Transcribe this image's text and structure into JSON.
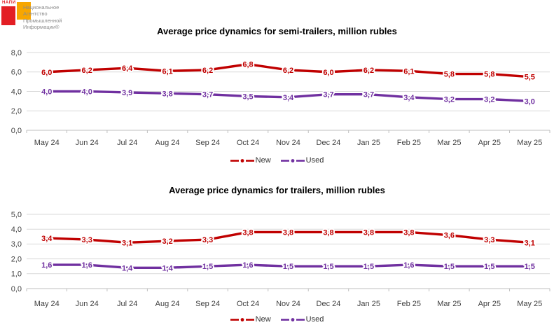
{
  "logo": {
    "brand": "НАПИ",
    "org_lines": [
      "Национальное",
      "Агентство",
      "Промышленной",
      "Информации®"
    ]
  },
  "colors": {
    "new_series": "#c00000",
    "used_series": "#7030a0",
    "gridline": "#d9d9d9",
    "axis_line": "#bfbfbf",
    "axis_text": "#404040"
  },
  "chart_data": [
    {
      "type": "line",
      "title": "Average price dynamics for semi-trailers, million rubles",
      "categories": [
        "May 24",
        "Jun 24",
        "Jul 24",
        "Aug 24",
        "Sep 24",
        "Oct 24",
        "Nov 24",
        "Dec 24",
        "Jan 25",
        "Feb 25",
        "Mar 25",
        "Apr 25",
        "May 25"
      ],
      "series": [
        {
          "name": "New",
          "color": "#c00000",
          "values": [
            6.0,
            6.2,
            6.4,
            6.1,
            6.2,
            6.8,
            6.2,
            6.0,
            6.2,
            6.1,
            5.8,
            5.8,
            5.5
          ]
        },
        {
          "name": "Used",
          "color": "#7030a0",
          "values": [
            4.0,
            4.0,
            3.9,
            3.8,
            3.7,
            3.5,
            3.4,
            3.7,
            3.7,
            3.4,
            3.2,
            3.2,
            3.0
          ]
        }
      ],
      "ylim": [
        0,
        8
      ],
      "ytick_step": 2,
      "ytick_labels": [
        "0,0",
        "2,0",
        "4,0",
        "6,0",
        "8,0"
      ],
      "grid": true,
      "legend_position": "bottom",
      "decimal_separator": ","
    },
    {
      "type": "line",
      "title": "Average price dynamics for trailers, million rubles",
      "categories": [
        "May 24",
        "Jun 24",
        "Jul 24",
        "Aug 24",
        "Sep 24",
        "Oct 24",
        "Nov 24",
        "Dec 24",
        "Jan 25",
        "Feb 25",
        "Mar 25",
        "Apr 25",
        "May 25"
      ],
      "series": [
        {
          "name": "New",
          "color": "#c00000",
          "values": [
            3.4,
            3.3,
            3.1,
            3.2,
            3.3,
            3.8,
            3.8,
            3.8,
            3.8,
            3.8,
            3.6,
            3.3,
            3.1
          ]
        },
        {
          "name": "Used",
          "color": "#7030a0",
          "values": [
            1.6,
            1.6,
            1.4,
            1.4,
            1.5,
            1.6,
            1.5,
            1.5,
            1.5,
            1.6,
            1.5,
            1.5,
            1.5
          ]
        }
      ],
      "ylim": [
        0,
        5
      ],
      "ytick_step": 1,
      "ytick_labels": [
        "0,0",
        "1,0",
        "2,0",
        "3,0",
        "4,0",
        "5,0"
      ],
      "grid": true,
      "legend_position": "bottom",
      "decimal_separator": ","
    }
  ]
}
